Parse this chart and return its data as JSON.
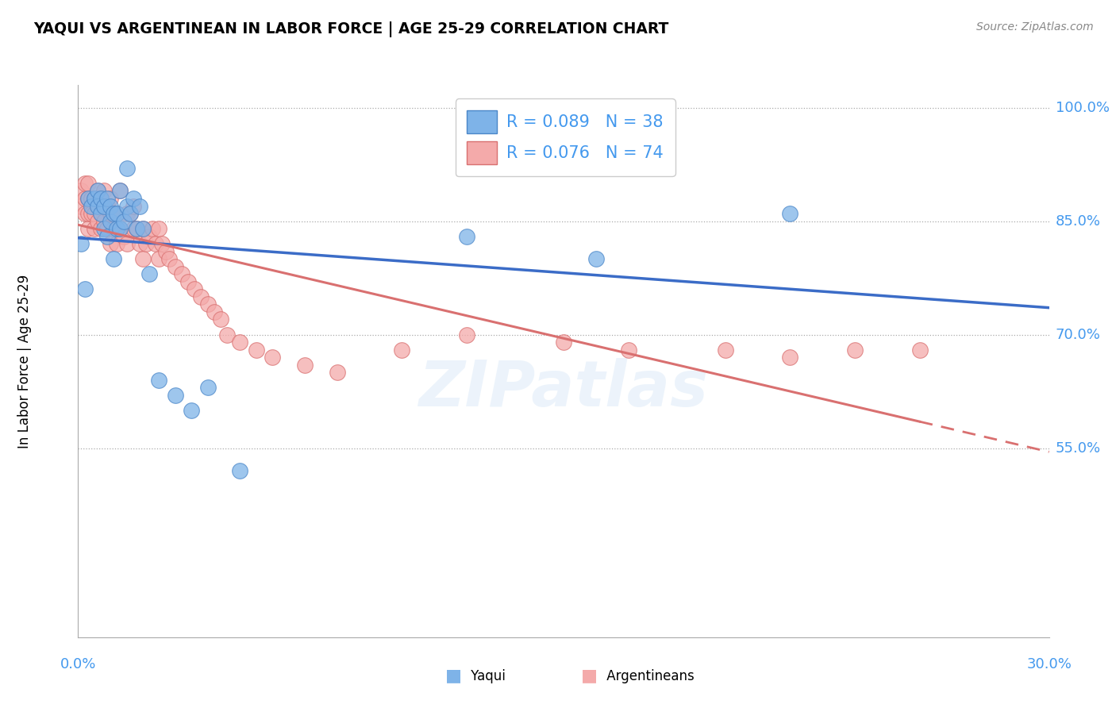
{
  "title": "YAQUI VS ARGENTINEAN IN LABOR FORCE | AGE 25-29 CORRELATION CHART",
  "source": "Source: ZipAtlas.com",
  "ylabel_label": "In Labor Force | Age 25-29",
  "yaqui_R": "R = 0.089",
  "yaqui_N": "N = 38",
  "arg_R": "R = 0.076",
  "arg_N": "N = 74",
  "xlim": [
    0.0,
    0.3
  ],
  "ylim": [
    0.3,
    1.03
  ],
  "ytick_vals": [
    0.55,
    0.7,
    0.85,
    1.0
  ],
  "blue_scatter": "#7EB3E8",
  "blue_edge": "#4A86C8",
  "pink_scatter": "#F4AAAA",
  "pink_edge": "#D97070",
  "blue_line": "#3B6CC7",
  "pink_line": "#D97070",
  "text_blue": "#4499EE",
  "watermark_color": "#AACCEE",
  "yaqui_x": [
    0.001,
    0.002,
    0.003,
    0.004,
    0.005,
    0.006,
    0.006,
    0.007,
    0.007,
    0.008,
    0.008,
    0.009,
    0.009,
    0.01,
    0.01,
    0.011,
    0.011,
    0.012,
    0.012,
    0.013,
    0.013,
    0.014,
    0.015,
    0.015,
    0.016,
    0.017,
    0.018,
    0.019,
    0.02,
    0.022,
    0.025,
    0.03,
    0.035,
    0.04,
    0.05,
    0.12,
    0.16,
    0.22
  ],
  "yaqui_y": [
    0.82,
    0.76,
    0.88,
    0.87,
    0.88,
    0.87,
    0.89,
    0.86,
    0.88,
    0.84,
    0.87,
    0.83,
    0.88,
    0.85,
    0.87,
    0.8,
    0.86,
    0.86,
    0.84,
    0.84,
    0.89,
    0.85,
    0.87,
    0.92,
    0.86,
    0.88,
    0.84,
    0.87,
    0.84,
    0.78,
    0.64,
    0.62,
    0.6,
    0.63,
    0.52,
    0.83,
    0.8,
    0.86
  ],
  "arg_x": [
    0.001,
    0.001,
    0.002,
    0.002,
    0.002,
    0.003,
    0.003,
    0.003,
    0.003,
    0.004,
    0.004,
    0.005,
    0.005,
    0.005,
    0.006,
    0.006,
    0.006,
    0.007,
    0.007,
    0.008,
    0.008,
    0.008,
    0.009,
    0.009,
    0.01,
    0.01,
    0.01,
    0.011,
    0.011,
    0.012,
    0.012,
    0.013,
    0.013,
    0.014,
    0.015,
    0.015,
    0.016,
    0.017,
    0.017,
    0.018,
    0.019,
    0.02,
    0.02,
    0.021,
    0.022,
    0.023,
    0.024,
    0.025,
    0.025,
    0.026,
    0.027,
    0.028,
    0.03,
    0.032,
    0.034,
    0.036,
    0.038,
    0.04,
    0.042,
    0.044,
    0.046,
    0.05,
    0.055,
    0.06,
    0.07,
    0.08,
    0.1,
    0.12,
    0.15,
    0.17,
    0.2,
    0.22,
    0.24,
    0.26
  ],
  "arg_y": [
    0.87,
    0.89,
    0.86,
    0.88,
    0.9,
    0.84,
    0.86,
    0.88,
    0.9,
    0.86,
    0.88,
    0.84,
    0.86,
    0.88,
    0.85,
    0.87,
    0.89,
    0.84,
    0.86,
    0.85,
    0.87,
    0.89,
    0.84,
    0.87,
    0.82,
    0.86,
    0.88,
    0.84,
    0.86,
    0.82,
    0.86,
    0.84,
    0.89,
    0.83,
    0.82,
    0.86,
    0.86,
    0.84,
    0.87,
    0.84,
    0.82,
    0.8,
    0.84,
    0.82,
    0.83,
    0.84,
    0.82,
    0.8,
    0.84,
    0.82,
    0.81,
    0.8,
    0.79,
    0.78,
    0.77,
    0.76,
    0.75,
    0.74,
    0.73,
    0.72,
    0.7,
    0.69,
    0.68,
    0.67,
    0.66,
    0.65,
    0.68,
    0.7,
    0.69,
    0.68,
    0.68,
    0.67,
    0.68,
    0.68
  ]
}
